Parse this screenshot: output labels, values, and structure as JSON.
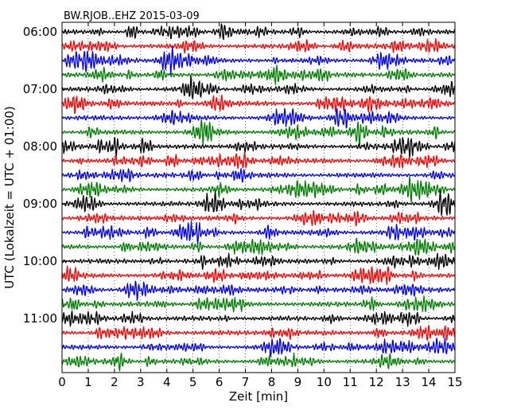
{
  "chart_data": {
    "type": "line",
    "title": "BW.RJOB..EHZ 2015-03-09",
    "xlabel": "Zeit  [min]",
    "ylabel": "UTC (Lokalzeit = UTC + 01:00)",
    "xlim": [
      0,
      15
    ],
    "x_ticks": [
      "0",
      "1",
      "2",
      "3",
      "4",
      "5",
      "6",
      "7",
      "8",
      "9",
      "10",
      "11",
      "12",
      "13",
      "14",
      "15"
    ],
    "y_tick_labels": [
      "06:00",
      "07:00",
      "08:00",
      "09:00",
      "10:00",
      "11:00"
    ],
    "traces_per_hour": 4,
    "trace_minutes": 15,
    "trace_count": 24,
    "start_time": "06:00",
    "trace_colors": [
      "#000000",
      "#ff0000",
      "#0000ff",
      "#008000"
    ],
    "grid": "vertical dotted lines at each minute",
    "legend": "none"
  }
}
